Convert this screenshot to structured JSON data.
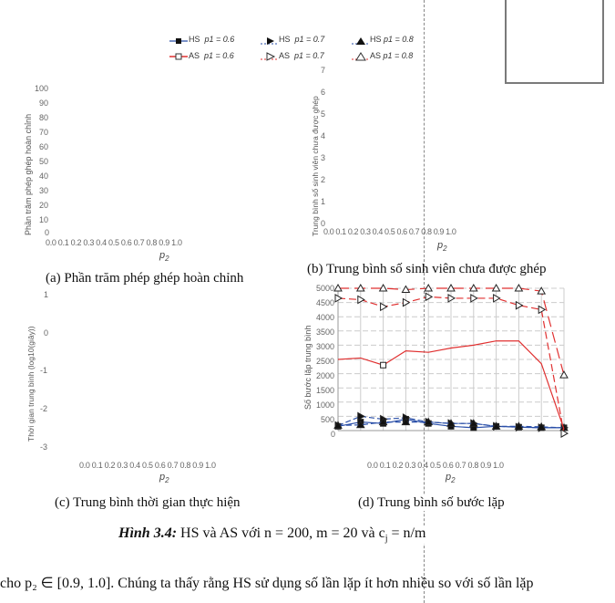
{
  "legend": [
    {
      "label": "HS",
      "p1": "p1 = 0.6",
      "marker": "filled-square",
      "color": "#2a4fa8",
      "line": "solid"
    },
    {
      "label": "HS",
      "p1": "p1 = 0.7",
      "marker": "filled-triangle-right",
      "color": "#2a4fa8",
      "line": "dashed"
    },
    {
      "label": "HS",
      "p1": "p1 = 0.8",
      "marker": "filled-triangle-up",
      "color": "#2a4fa8",
      "line": "dashed"
    },
    {
      "label": "AS",
      "p1": "p1 = 0.6",
      "marker": "open-square",
      "color": "#e03030",
      "line": "solid"
    },
    {
      "label": "AS",
      "p1": "p1 = 0.7",
      "marker": "open-triangle-right",
      "color": "#e03030",
      "line": "dashed"
    },
    {
      "label": "AS",
      "p1": "p1 = 0.8",
      "marker": "open-triangle-up",
      "color": "#e03030",
      "line": "dashed"
    }
  ],
  "panels": {
    "a": {
      "caption": "(a) Phần trăm phép ghép hoàn chỉnh",
      "ylabel": "Phần trăm phép ghép hoàn chỉnh",
      "xlabel": "p2"
    },
    "b": {
      "caption": "(b) Trung bình số sinh viên chưa được ghép",
      "ylabel": "Trung bình số sinh viên chưa được ghép",
      "xlabel": "p2"
    },
    "c": {
      "caption": "(c) Trung bình thời gian thực hiện",
      "ylabel": "Thời gian trung bình (log10(giây))",
      "xlabel": "p2"
    },
    "d": {
      "caption": "(d) Trung bình số bước lặp",
      "ylabel": "Số bước lặp trung bình",
      "xlabel": "p2"
    }
  },
  "figure_caption": {
    "prefix": "Hình 3.4:",
    "text": " HS và AS với n = 200, m = 20 và c",
    "sub": "j",
    "suffix": " = n/m"
  },
  "body_text": "cho p₂ ∈ [0.9, 1.0]. Chúng ta thấy rằng HS sử dụng số lần lặp ít hơn nhiều so với số lần lặp",
  "chart_data": [
    {
      "type": "line",
      "title": "(a) Phần trăm phép ghép hoàn chỉnh",
      "xlabel": "p2",
      "ylabel": "Phần trăm phép ghép hoàn chỉnh",
      "x": [
        0.0,
        0.1,
        0.2,
        0.3,
        0.4,
        0.5,
        0.6,
        0.7,
        0.8,
        0.9,
        1.0
      ],
      "yticks": [
        0,
        10,
        20,
        30,
        40,
        50,
        60,
        70,
        80,
        90,
        100
      ],
      "ylim": [
        0,
        100
      ],
      "series": [],
      "grid": false
    },
    {
      "type": "line",
      "title": "(b) Trung bình số sinh viên chưa được ghép",
      "xlabel": "p2",
      "ylabel": "Trung bình số sinh viên chưa được ghép",
      "x": [
        0.0,
        0.1,
        0.2,
        0.3,
        0.4,
        0.5,
        0.6,
        0.7,
        0.8,
        0.9,
        1.0
      ],
      "yticks": [
        0,
        1,
        2,
        3,
        4,
        5,
        6,
        7
      ],
      "ylim": [
        0,
        7
      ],
      "series": [],
      "grid": false
    },
    {
      "type": "line",
      "title": "(c) Trung bình thời gian thực hiện",
      "xlabel": "p2",
      "ylabel": "Thời gian trung bình (log10(giây))",
      "x": [
        0.0,
        0.1,
        0.2,
        0.3,
        0.4,
        0.5,
        0.6,
        0.7,
        0.8,
        0.9,
        1.0
      ],
      "yticks": [
        1,
        0,
        -1,
        -2,
        -3
      ],
      "ylim": [
        -3,
        1
      ],
      "series": [],
      "grid": false
    },
    {
      "type": "line",
      "title": "(d) Trung bình số bước lặp",
      "xlabel": "p2",
      "ylabel": "Số bước lặp trung bình",
      "x": [
        0.0,
        0.1,
        0.2,
        0.3,
        0.4,
        0.5,
        0.6,
        0.7,
        0.8,
        0.9,
        1.0
      ],
      "yticks": [
        0,
        500,
        1000,
        1500,
        2000,
        2500,
        3000,
        3500,
        4000,
        4500,
        5000
      ],
      "ylim": [
        0,
        5000
      ],
      "grid": true,
      "legend_position": "top",
      "series": [
        {
          "name": "HS p1 = 0.6",
          "color": "#2a4fa8",
          "values": [
            150,
            300,
            250,
            400,
            250,
            150,
            100,
            150,
            120,
            100,
            100
          ]
        },
        {
          "name": "HS p1 = 0.7",
          "color": "#2a4fa8",
          "values": [
            180,
            500,
            400,
            450,
            300,
            250,
            250,
            150,
            120,
            100,
            100
          ]
        },
        {
          "name": "HS p1 = 0.8",
          "color": "#2a4fa8",
          "values": [
            180,
            200,
            300,
            300,
            300,
            250,
            250,
            150,
            150,
            130,
            100
          ]
        },
        {
          "name": "AS p1 = 0.6",
          "color": "#e03030",
          "values": [
            2500,
            2550,
            2300,
            2800,
            2750,
            2900,
            3000,
            3150,
            3150,
            2350,
            50
          ]
        },
        {
          "name": "AS p1 = 0.7",
          "color": "#e03030",
          "values": [
            4650,
            4600,
            4350,
            4500,
            4700,
            4650,
            4650,
            4650,
            4400,
            4250,
            -100
          ]
        },
        {
          "name": "AS p1 = 0.8",
          "color": "#e03030",
          "values": [
            5000,
            5000,
            5000,
            4950,
            5000,
            5000,
            5000,
            5000,
            5000,
            4900,
            1950
          ]
        }
      ]
    }
  ]
}
